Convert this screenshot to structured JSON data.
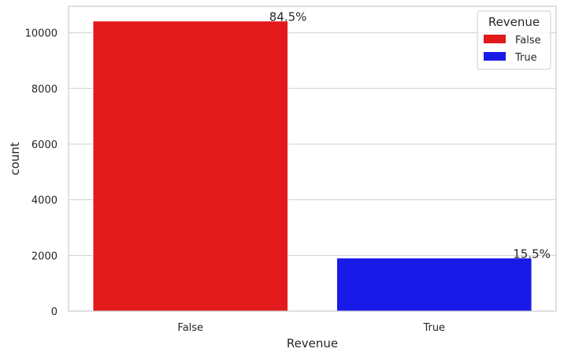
{
  "chart_data": {
    "type": "bar",
    "categories": [
      "False",
      "True"
    ],
    "values": [
      10422,
      1908
    ],
    "colors": [
      "#e31a1c",
      "#1a1ae8"
    ],
    "data_labels": [
      "84.5%",
      "15.5%"
    ],
    "xlabel": "Revenue",
    "ylabel": "count",
    "ylim": [
      0,
      10950
    ],
    "yticks": [
      0,
      2000,
      4000,
      6000,
      8000,
      10000
    ],
    "ytick_labels": [
      "0",
      "2000",
      "4000",
      "6000",
      "8000",
      "10000"
    ],
    "grid": "horizontal",
    "legend": {
      "title": "Revenue",
      "placement": "top-right",
      "entries": [
        {
          "label": "False",
          "color": "#e31a1c"
        },
        {
          "label": "True",
          "color": "#1a1ae8"
        }
      ]
    }
  }
}
